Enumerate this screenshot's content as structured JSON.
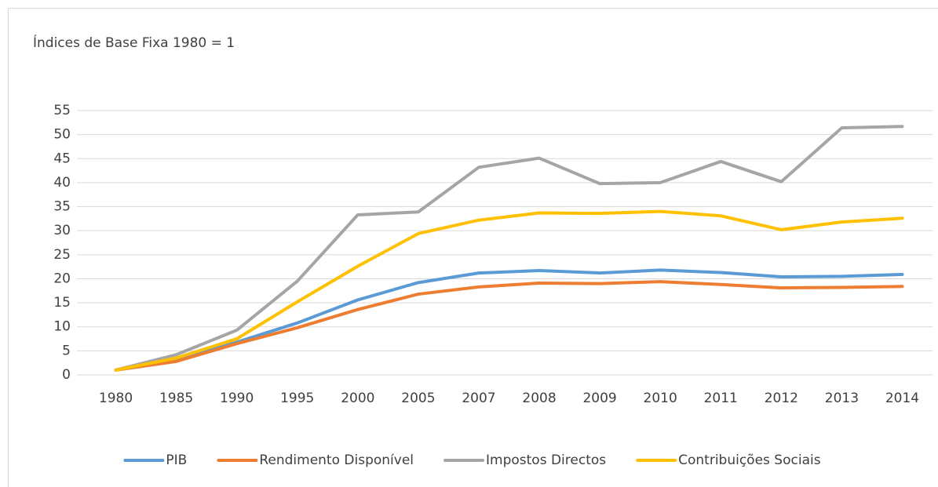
{
  "chart_data": {
    "type": "line",
    "title": "Índices de Base Fixa 1980 = 1",
    "categories": [
      "1980",
      "1985",
      "1990",
      "1995",
      "2000",
      "2005",
      "2007",
      "2008",
      "2009",
      "2010",
      "2011",
      "2012",
      "2013",
      "2014"
    ],
    "series": [
      {
        "name": "PIB",
        "color": "#5b9bd5",
        "values": [
          1,
          3.2,
          6.8,
          10.8,
          15.6,
          19.2,
          21.2,
          21.7,
          21.2,
          21.8,
          21.3,
          20.4,
          20.5,
          20.9
        ]
      },
      {
        "name": "Rendimento Disponível",
        "color": "#ed7d31",
        "values": [
          1,
          2.8,
          6.5,
          9.8,
          13.6,
          16.8,
          18.3,
          19.1,
          19.0,
          19.4,
          18.8,
          18.1,
          18.2,
          18.4
        ]
      },
      {
        "name": "Impostos Directos",
        "color": "#a5a5a5",
        "values": [
          1,
          4.2,
          9.3,
          19.5,
          33.3,
          33.9,
          43.2,
          45.1,
          39.8,
          40.0,
          44.4,
          40.2,
          51.4,
          51.7
        ]
      },
      {
        "name": "Contribuições Sociais",
        "color": "#ffc000",
        "values": [
          1,
          3.5,
          7.5,
          15.2,
          22.6,
          29.4,
          32.2,
          33.7,
          33.6,
          34.0,
          33.1,
          30.2,
          31.8,
          32.6
        ]
      }
    ],
    "ylim": [
      0,
      55
    ],
    "yticks": [
      0,
      5,
      10,
      15,
      20,
      25,
      30,
      35,
      40,
      45,
      50,
      55
    ],
    "grid": true,
    "legend": "bottom"
  }
}
